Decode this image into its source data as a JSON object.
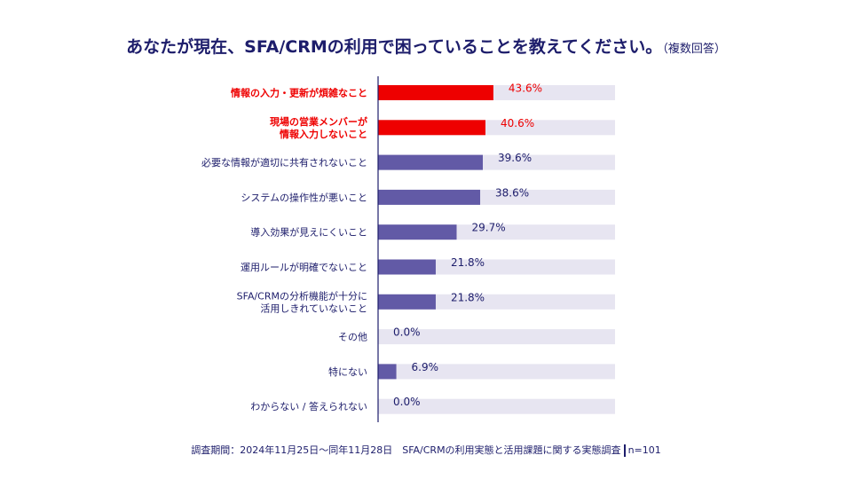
{
  "title": "あなたが現在、SFA/CRMの利用で困っていることを教えてください。",
  "title_note": "（複数回答）",
  "colors": {
    "highlight": "#ee0000",
    "bar": "#625aa6",
    "track": "#e7e5f1",
    "text": "#1d1d6b"
  },
  "chart_data": {
    "type": "bar",
    "orientation": "horizontal",
    "categories": [
      [
        "情報の入力・更新が煩雑なこと"
      ],
      [
        "現場の営業メンバーが",
        "情報入力しないこと"
      ],
      [
        "必要な情報が適切に共有されないこと"
      ],
      [
        "システムの操作性が悪いこと"
      ],
      [
        "導入効果が見えにくいこと"
      ],
      [
        "運用ルールが明確でないこと"
      ],
      [
        "SFA/CRMの分析機能が十分に",
        "活用しきれていないこと"
      ],
      [
        "その他"
      ],
      [
        "特にない"
      ],
      [
        "わからない / 答えられない"
      ]
    ],
    "values": [
      43.6,
      40.6,
      39.6,
      38.6,
      29.7,
      21.8,
      21.8,
      0.0,
      6.9,
      0.0
    ],
    "value_labels": [
      "43.6%",
      "40.6%",
      "39.6%",
      "38.6%",
      "29.7%",
      "21.8%",
      "21.8%",
      "0.0%",
      "6.9%",
      "0.0%"
    ],
    "highlighted": [
      true,
      true,
      false,
      false,
      false,
      false,
      false,
      false,
      false,
      false
    ],
    "xlim": [
      0,
      100
    ],
    "grid": false,
    "legend": "none"
  },
  "footer": {
    "survey": "調査期間：2024年11月25日～同年11月28日　SFA/CRMの利用実態と活用課題に関する実態調査",
    "n": "n=101"
  }
}
